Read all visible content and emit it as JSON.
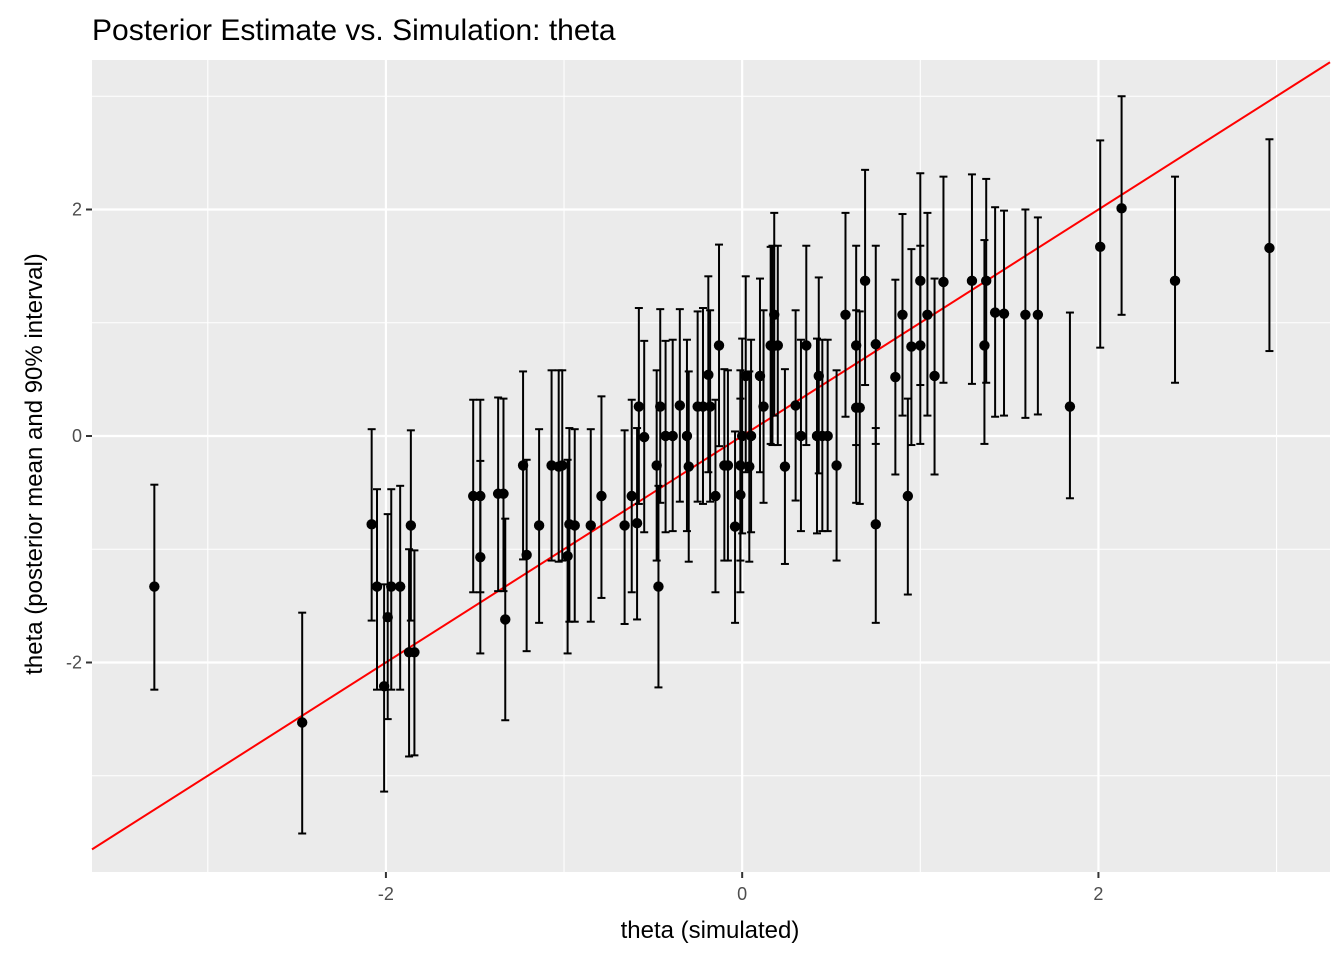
{
  "chart_data": {
    "type": "scatter",
    "title": "Posterior Estimate vs. Simulation:  theta",
    "xlabel": "theta (simulated)",
    "ylabel": "theta (posterior mean and 90% interval)",
    "xlim": [
      -3.65,
      3.3
    ],
    "ylim": [
      -3.85,
      3.32
    ],
    "x_ticks": [
      -2,
      0,
      2
    ],
    "y_ticks": [
      -2,
      0,
      2
    ],
    "x_tick_labels": [
      "-2",
      "0",
      "2"
    ],
    "y_tick_labels": [
      "-2",
      "0",
      "2"
    ],
    "grid": true,
    "reference_line": {
      "slope": 1,
      "intercept": 0,
      "color": "#ff0000"
    },
    "panel_background": "#ebebeb",
    "point_color": "#000000",
    "points": [
      {
        "x": -3.3,
        "mean": -1.33,
        "lo": -2.24,
        "hi": -0.43
      },
      {
        "x": -2.47,
        "mean": -2.53,
        "lo": -3.51,
        "hi": -1.56
      },
      {
        "x": -2.08,
        "mean": -0.78,
        "lo": -1.63,
        "hi": 0.06
      },
      {
        "x": -2.05,
        "mean": -1.33,
        "lo": -2.24,
        "hi": -0.47
      },
      {
        "x": -2.01,
        "mean": -2.21,
        "lo": -3.14,
        "hi": -1.31
      },
      {
        "x": -1.99,
        "mean": -1.6,
        "lo": -2.5,
        "hi": -0.69
      },
      {
        "x": -1.97,
        "mean": -1.33,
        "lo": -2.24,
        "hi": -0.47
      },
      {
        "x": -1.92,
        "mean": -1.33,
        "lo": -2.24,
        "hi": -0.44
      },
      {
        "x": -1.87,
        "mean": -1.91,
        "lo": -2.83,
        "hi": -1.0
      },
      {
        "x": -1.86,
        "mean": -0.79,
        "lo": -1.63,
        "hi": 0.05
      },
      {
        "x": -1.84,
        "mean": -1.91,
        "lo": -2.82,
        "hi": -1.01
      },
      {
        "x": -1.51,
        "mean": -0.53,
        "lo": -1.38,
        "hi": 0.32
      },
      {
        "x": -1.47,
        "mean": -0.53,
        "lo": -1.38,
        "hi": 0.32
      },
      {
        "x": -1.47,
        "mean": -1.07,
        "lo": -1.92,
        "hi": -0.22
      },
      {
        "x": -1.37,
        "mean": -0.51,
        "lo": -1.37,
        "hi": 0.34
      },
      {
        "x": -1.34,
        "mean": -0.51,
        "lo": -1.37,
        "hi": 0.33
      },
      {
        "x": -1.33,
        "mean": -1.62,
        "lo": -2.51,
        "hi": -0.73
      },
      {
        "x": -1.23,
        "mean": -0.26,
        "lo": -1.09,
        "hi": 0.57
      },
      {
        "x": -1.21,
        "mean": -1.05,
        "lo": -1.9,
        "hi": -0.21
      },
      {
        "x": -1.14,
        "mean": -0.79,
        "lo": -1.65,
        "hi": 0.06
      },
      {
        "x": -1.07,
        "mean": -0.26,
        "lo": -1.1,
        "hi": 0.58
      },
      {
        "x": -1.03,
        "mean": -0.27,
        "lo": -1.11,
        "hi": 0.58
      },
      {
        "x": -1.01,
        "mean": -0.26,
        "lo": -1.1,
        "hi": 0.58
      },
      {
        "x": -0.98,
        "mean": -1.06,
        "lo": -1.92,
        "hi": -0.21
      },
      {
        "x": -0.97,
        "mean": -0.78,
        "lo": -1.64,
        "hi": 0.07
      },
      {
        "x": -0.94,
        "mean": -0.79,
        "lo": -1.64,
        "hi": 0.06
      },
      {
        "x": -0.85,
        "mean": -0.79,
        "lo": -1.64,
        "hi": 0.06
      },
      {
        "x": -0.79,
        "mean": -0.53,
        "lo": -1.43,
        "hi": 0.35
      },
      {
        "x": -0.66,
        "mean": -0.79,
        "lo": -1.66,
        "hi": 0.05
      },
      {
        "x": -0.62,
        "mean": -0.53,
        "lo": -1.38,
        "hi": 0.32
      },
      {
        "x": -0.59,
        "mean": -0.77,
        "lo": -1.62,
        "hi": 0.07
      },
      {
        "x": -0.58,
        "mean": 0.26,
        "lo": -0.6,
        "hi": 1.13
      },
      {
        "x": -0.55,
        "mean": -0.01,
        "lo": -0.85,
        "hi": 0.84
      },
      {
        "x": -0.48,
        "mean": -0.26,
        "lo": -1.1,
        "hi": 0.58
      },
      {
        "x": -0.47,
        "mean": -1.33,
        "lo": -2.22,
        "hi": -0.44
      },
      {
        "x": -0.46,
        "mean": 0.26,
        "lo": -0.59,
        "hi": 1.12
      },
      {
        "x": -0.43,
        "mean": 0.0,
        "lo": -0.85,
        "hi": 0.84
      },
      {
        "x": -0.39,
        "mean": 0.0,
        "lo": -0.84,
        "hi": 0.85
      },
      {
        "x": -0.35,
        "mean": 0.27,
        "lo": -0.58,
        "hi": 1.12
      },
      {
        "x": -0.31,
        "mean": 0.0,
        "lo": -0.84,
        "hi": 0.85
      },
      {
        "x": -0.3,
        "mean": -0.27,
        "lo": -1.11,
        "hi": 0.57
      },
      {
        "x": -0.25,
        "mean": 0.26,
        "lo": -0.58,
        "hi": 1.1
      },
      {
        "x": -0.22,
        "mean": 0.26,
        "lo": -0.6,
        "hi": 1.13
      },
      {
        "x": -0.19,
        "mean": 0.54,
        "lo": -0.32,
        "hi": 1.41
      },
      {
        "x": -0.18,
        "mean": 0.26,
        "lo": -0.58,
        "hi": 1.11
      },
      {
        "x": -0.15,
        "mean": -0.53,
        "lo": -1.38,
        "hi": 0.32
      },
      {
        "x": -0.13,
        "mean": 0.8,
        "lo": -0.09,
        "hi": 1.69
      },
      {
        "x": -0.1,
        "mean": -0.26,
        "lo": -1.1,
        "hi": 0.59
      },
      {
        "x": -0.08,
        "mean": -0.26,
        "lo": -1.1,
        "hi": 0.58
      },
      {
        "x": -0.04,
        "mean": -0.8,
        "lo": -1.65,
        "hi": 0.04
      },
      {
        "x": -0.01,
        "mean": -0.26,
        "lo": -1.1,
        "hi": 0.58
      },
      {
        "x": -0.01,
        "mean": -0.52,
        "lo": -1.38,
        "hi": 0.33
      },
      {
        "x": 0.0,
        "mean": 0.0,
        "lo": -0.86,
        "hi": 0.86
      },
      {
        "x": 0.02,
        "mean": 0.53,
        "lo": -0.32,
        "hi": 1.41
      },
      {
        "x": 0.04,
        "mean": -0.27,
        "lo": -1.11,
        "hi": 0.57
      },
      {
        "x": 0.05,
        "mean": 0.0,
        "lo": -0.85,
        "hi": 0.85
      },
      {
        "x": 0.1,
        "mean": 0.53,
        "lo": -0.32,
        "hi": 1.39
      },
      {
        "x": 0.12,
        "mean": 0.26,
        "lo": -0.59,
        "hi": 1.11
      },
      {
        "x": 0.16,
        "mean": 0.8,
        "lo": -0.07,
        "hi": 1.67
      },
      {
        "x": 0.17,
        "mean": 0.79,
        "lo": -0.08,
        "hi": 1.68
      },
      {
        "x": 0.18,
        "mean": 1.07,
        "lo": 0.18,
        "hi": 1.97
      },
      {
        "x": 0.2,
        "mean": 0.8,
        "lo": -0.08,
        "hi": 1.68
      },
      {
        "x": 0.24,
        "mean": -0.27,
        "lo": -1.13,
        "hi": 0.59
      },
      {
        "x": 0.3,
        "mean": 0.27,
        "lo": -0.57,
        "hi": 1.11
      },
      {
        "x": 0.33,
        "mean": 0.0,
        "lo": -0.84,
        "hi": 0.85
      },
      {
        "x": 0.36,
        "mean": 0.8,
        "lo": -0.08,
        "hi": 1.68
      },
      {
        "x": 0.42,
        "mean": 0.0,
        "lo": -0.86,
        "hi": 0.86
      },
      {
        "x": 0.43,
        "mean": 0.53,
        "lo": -0.33,
        "hi": 1.4
      },
      {
        "x": 0.45,
        "mean": 0.0,
        "lo": -0.84,
        "hi": 0.85
      },
      {
        "x": 0.48,
        "mean": 0.0,
        "lo": -0.84,
        "hi": 0.85
      },
      {
        "x": 0.53,
        "mean": -0.26,
        "lo": -1.1,
        "hi": 0.58
      },
      {
        "x": 0.58,
        "mean": 1.07,
        "lo": 0.17,
        "hi": 1.97
      },
      {
        "x": 0.64,
        "mean": 0.25,
        "lo": -0.59,
        "hi": 1.11
      },
      {
        "x": 0.64,
        "mean": 0.8,
        "lo": -0.08,
        "hi": 1.68
      },
      {
        "x": 0.66,
        "mean": 0.25,
        "lo": -0.6,
        "hi": 1.1
      },
      {
        "x": 0.69,
        "mean": 1.37,
        "lo": 0.45,
        "hi": 2.35
      },
      {
        "x": 0.75,
        "mean": -0.78,
        "lo": -1.65,
        "hi": 0.07
      },
      {
        "x": 0.75,
        "mean": 0.81,
        "lo": -0.07,
        "hi": 1.68
      },
      {
        "x": 0.86,
        "mean": 0.52,
        "lo": -0.34,
        "hi": 1.38
      },
      {
        "x": 0.9,
        "mean": 1.07,
        "lo": 0.18,
        "hi": 1.96
      },
      {
        "x": 0.93,
        "mean": -0.53,
        "lo": -1.4,
        "hi": 0.33
      },
      {
        "x": 0.95,
        "mean": 0.79,
        "lo": -0.08,
        "hi": 1.65
      },
      {
        "x": 1.0,
        "mean": 1.37,
        "lo": 0.45,
        "hi": 2.32
      },
      {
        "x": 1.0,
        "mean": 0.8,
        "lo": -0.07,
        "hi": 1.68
      },
      {
        "x": 1.04,
        "mean": 1.07,
        "lo": 0.18,
        "hi": 1.97
      },
      {
        "x": 1.08,
        "mean": 0.53,
        "lo": -0.34,
        "hi": 1.39
      },
      {
        "x": 1.13,
        "mean": 1.36,
        "lo": 0.47,
        "hi": 2.29
      },
      {
        "x": 1.29,
        "mean": 1.37,
        "lo": 0.46,
        "hi": 2.31
      },
      {
        "x": 1.36,
        "mean": 0.8,
        "lo": -0.07,
        "hi": 1.73
      },
      {
        "x": 1.37,
        "mean": 1.37,
        "lo": 0.47,
        "hi": 2.27
      },
      {
        "x": 1.42,
        "mean": 1.09,
        "lo": 0.17,
        "hi": 2.02
      },
      {
        "x": 1.47,
        "mean": 1.08,
        "lo": 0.18,
        "hi": 1.99
      },
      {
        "x": 1.59,
        "mean": 1.07,
        "lo": 0.16,
        "hi": 2.0
      },
      {
        "x": 1.66,
        "mean": 1.07,
        "lo": 0.19,
        "hi": 1.93
      },
      {
        "x": 1.84,
        "mean": 0.26,
        "lo": -0.55,
        "hi": 1.09
      },
      {
        "x": 2.01,
        "mean": 1.67,
        "lo": 0.78,
        "hi": 2.61
      },
      {
        "x": 2.13,
        "mean": 2.01,
        "lo": 1.07,
        "hi": 3.0
      },
      {
        "x": 2.43,
        "mean": 1.37,
        "lo": 0.47,
        "hi": 2.29
      },
      {
        "x": 2.96,
        "mean": 1.66,
        "lo": 0.75,
        "hi": 2.62
      }
    ]
  }
}
